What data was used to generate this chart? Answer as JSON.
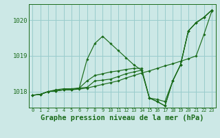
{
  "background_color": "#cce8e6",
  "plot_bg_color": "#cce8e6",
  "grid_color": "#99cccc",
  "line_color": "#1a6b1a",
  "xlabel": "Graphe pression niveau de la mer (hPa)",
  "xlabel_fontsize": 7.5,
  "ylim": [
    1017.55,
    1020.45
  ],
  "xlim": [
    -0.5,
    23.5
  ],
  "yticks": [
    1018,
    1019,
    1020
  ],
  "xticks": [
    0,
    1,
    2,
    3,
    4,
    5,
    6,
    7,
    8,
    9,
    10,
    11,
    12,
    13,
    14,
    15,
    16,
    17,
    18,
    19,
    20,
    21,
    22,
    23
  ],
  "series": [
    [
      1017.9,
      1017.92,
      1018.0,
      1018.02,
      1018.05,
      1018.05,
      1018.07,
      1018.1,
      1018.15,
      1018.2,
      1018.25,
      1018.3,
      1018.38,
      1018.45,
      1018.52,
      1018.58,
      1018.65,
      1018.72,
      1018.78,
      1018.85,
      1018.92,
      1019.0,
      1019.6,
      1020.25
    ],
    [
      1017.9,
      1017.92,
      1018.0,
      1018.02,
      1018.05,
      1018.05,
      1018.1,
      1018.9,
      1019.35,
      1019.55,
      1019.35,
      1019.15,
      1018.95,
      1018.75,
      1018.6,
      1017.82,
      1017.78,
      1017.72,
      1018.3,
      1018.75,
      1019.7,
      1019.93,
      1020.08,
      1020.28
    ],
    [
      1017.9,
      1017.92,
      1018.0,
      1018.02,
      1018.05,
      1018.05,
      1018.1,
      1018.3,
      1018.45,
      1018.5,
      1018.55,
      1018.58,
      1018.62,
      1018.65,
      1018.65,
      1017.82,
      1017.72,
      1017.6,
      1018.3,
      1018.75,
      1019.7,
      1019.93,
      1020.08,
      1020.28
    ],
    [
      1017.9,
      1017.92,
      1018.0,
      1018.05,
      1018.08,
      1018.08,
      1018.1,
      1018.12,
      1018.3,
      1018.32,
      1018.35,
      1018.42,
      1018.5,
      1018.55,
      1018.6,
      1017.82,
      1017.72,
      1017.6,
      1018.3,
      1018.75,
      1019.7,
      1019.93,
      1020.08,
      1020.28
    ]
  ]
}
